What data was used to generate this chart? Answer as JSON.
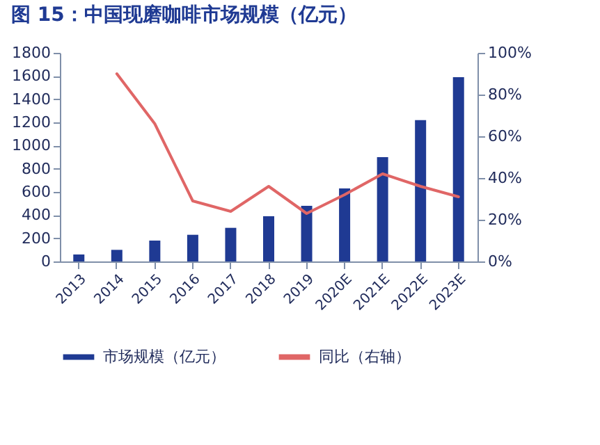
{
  "chart_data": {
    "type": "bar",
    "title": "图 15：中国现磨咖啡市场规模（亿元）",
    "categories": [
      "2013",
      "2014",
      "2015",
      "2016",
      "2017",
      "2018",
      "2019",
      "2020E",
      "2021E",
      "2022E",
      "2023E"
    ],
    "series": [
      {
        "name": "市场规模（亿元）",
        "color": "#1f3a93",
        "values": [
          60,
          100,
          180,
          230,
          290,
          390,
          480,
          630,
          900,
          1220,
          1590
        ]
      },
      {
        "name": "同比（右轴）",
        "type": "line",
        "axis": "y2",
        "color": "#e06666",
        "line_style": "solid",
        "marker": "none",
        "values": [
          null,
          90,
          66,
          29,
          24,
          36,
          23,
          32,
          42,
          36,
          31
        ]
      }
    ],
    "ylim": [
      0,
      1800
    ],
    "yticks": [
      0,
      200,
      400,
      600,
      800,
      1000,
      1200,
      1400,
      1600,
      1800
    ],
    "y2lim": [
      0,
      100
    ],
    "y2ticks": [
      {
        "value": 0,
        "label": "0%"
      },
      {
        "value": 20,
        "label": "20%"
      },
      {
        "value": 40,
        "label": "40%"
      },
      {
        "value": 60,
        "label": "60%"
      },
      {
        "value": 80,
        "label": "80%"
      },
      {
        "value": 100,
        "label": "100%"
      }
    ],
    "grid": false,
    "legend": "bottom"
  }
}
